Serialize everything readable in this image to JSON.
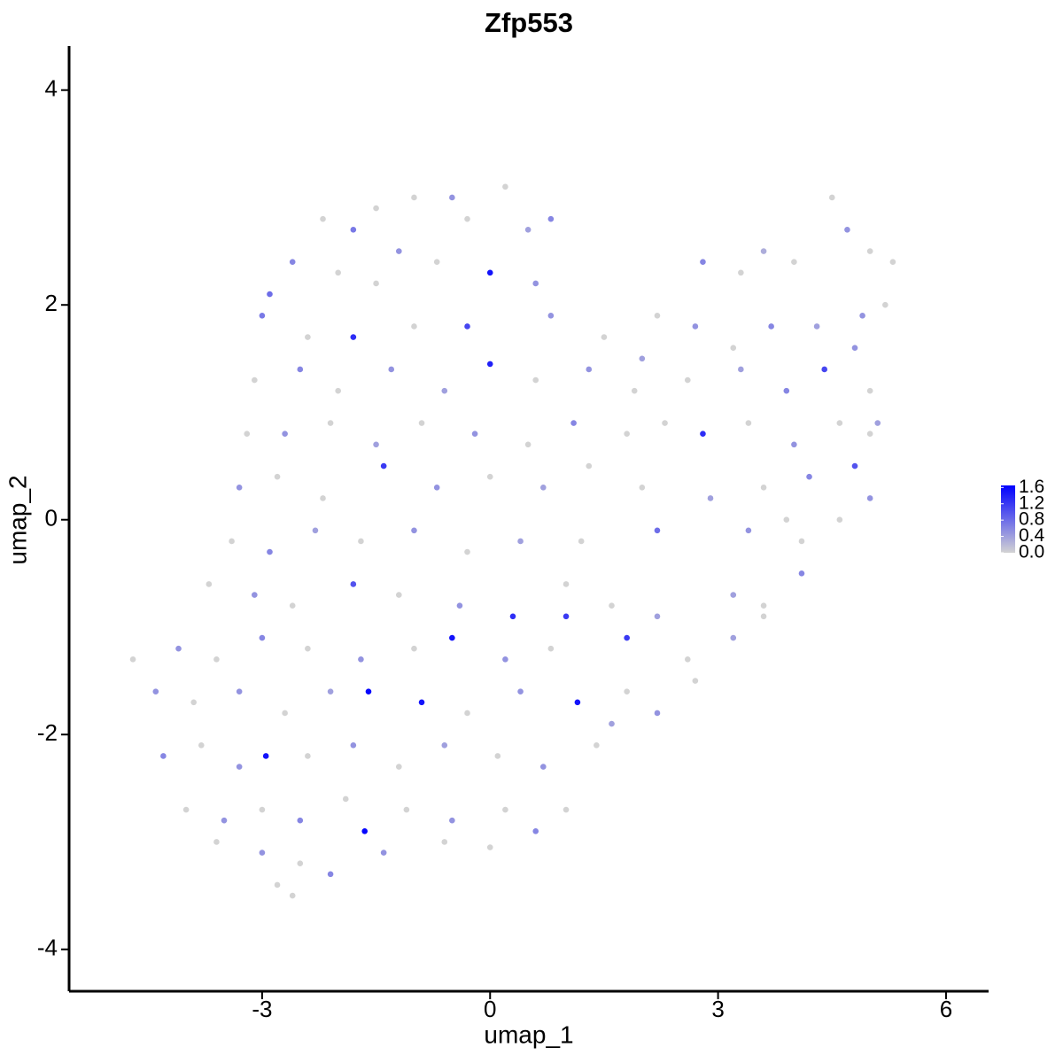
{
  "chart_data": {
    "type": "scatter",
    "title": "Zfp553",
    "xlabel": "umap_1",
    "ylabel": "umap_2",
    "xlim": [
      -5.54,
      6.56
    ],
    "ylim": [
      -4.39,
      4.41
    ],
    "xticks": [
      -3,
      0,
      3,
      6
    ],
    "yticks": [
      -4,
      -2,
      0,
      2,
      4
    ],
    "colors": [
      "#d3d3d3",
      "#0000ff"
    ],
    "clim": [
      0,
      1.65
    ],
    "cticks": [
      {
        "value": 0,
        "label": "0.0"
      },
      0.4,
      0.8,
      1.2,
      1.6
    ],
    "x": [
      -1.5,
      -1.0,
      -0.5,
      0.2,
      0.8,
      -2.2,
      -1.8,
      0.5,
      -0.3,
      -2.6,
      -2.0,
      -1.2,
      -0.7,
      0.0,
      0.6,
      -2.9,
      -1.5,
      4.5,
      4.7,
      5.0,
      5.3,
      3.6,
      4.0,
      3.3,
      2.8,
      -3.0,
      -2.4,
      -1.8,
      -1.0,
      -0.3,
      0.8,
      1.5,
      2.2,
      2.7,
      3.2,
      3.7,
      4.3,
      4.9,
      5.2,
      2.0,
      -3.1,
      -2.5,
      -2.0,
      -1.3,
      -0.6,
      0.0,
      0.6,
      1.3,
      1.9,
      2.6,
      3.3,
      3.9,
      4.4,
      5.0,
      4.8,
      -3.2,
      -2.7,
      -2.1,
      -1.5,
      -0.9,
      -0.2,
      0.5,
      1.1,
      1.8,
      2.3,
      2.8,
      3.4,
      4.0,
      4.6,
      5.1,
      -3.3,
      -2.8,
      -2.2,
      -1.4,
      -0.7,
      0.0,
      0.7,
      1.3,
      2.0,
      2.9,
      3.6,
      4.2,
      4.8,
      5.0,
      3.9,
      -3.4,
      -2.9,
      -2.3,
      -1.7,
      -1.0,
      -0.3,
      0.4,
      1.2,
      2.2,
      3.4,
      4.1,
      4.6,
      5.0,
      -3.7,
      -3.1,
      -2.6,
      -1.8,
      -1.2,
      -0.4,
      0.3,
      1.0,
      1.6,
      2.2,
      3.2,
      3.6,
      4.1,
      1.0,
      -4.7,
      -4.1,
      -3.6,
      -3.0,
      -2.4,
      -1.7,
      -1.0,
      -0.5,
      0.2,
      0.8,
      1.8,
      2.6,
      3.2,
      3.6,
      -4.4,
      -3.9,
      -3.3,
      -2.7,
      -2.1,
      -1.6,
      -0.9,
      -0.3,
      0.4,
      1.15,
      1.8,
      2.2,
      2.7,
      -4.3,
      -3.8,
      -3.3,
      -2.95,
      -2.4,
      -1.8,
      -1.2,
      -0.6,
      0.1,
      0.7,
      1.4,
      1.6,
      -4.0,
      -3.5,
      -3.0,
      -2.5,
      -1.9,
      -1.65,
      -1.1,
      -0.5,
      0.2,
      0.6,
      1.0,
      -3.6,
      -3.0,
      -2.5,
      -2.1,
      -1.4,
      -0.6,
      0.0,
      -2.6,
      -2.8
    ],
    "y": [
      2.9,
      3.0,
      3.0,
      3.1,
      2.8,
      2.8,
      2.7,
      2.7,
      2.8,
      2.4,
      2.3,
      2.5,
      2.4,
      2.3,
      2.2,
      2.1,
      2.2,
      3.0,
      2.7,
      2.5,
      2.4,
      2.5,
      2.4,
      2.3,
      2.4,
      1.9,
      1.7,
      1.7,
      1.8,
      1.8,
      1.9,
      1.7,
      1.9,
      1.8,
      1.6,
      1.8,
      1.8,
      1.9,
      2.0,
      1.5,
      1.3,
      1.4,
      1.2,
      1.4,
      1.2,
      1.45,
      1.3,
      1.4,
      1.2,
      1.3,
      1.4,
      1.2,
      1.4,
      1.2,
      1.6,
      0.8,
      0.8,
      0.9,
      0.7,
      0.9,
      0.8,
      0.7,
      0.9,
      0.8,
      0.9,
      0.8,
      0.9,
      0.7,
      0.9,
      0.9,
      0.3,
      0.4,
      0.2,
      0.5,
      0.3,
      0.4,
      0.3,
      0.5,
      0.3,
      0.2,
      0.3,
      0.4,
      0.5,
      0.8,
      0.0,
      -0.2,
      -0.3,
      -0.1,
      -0.2,
      -0.1,
      -0.3,
      -0.2,
      -0.2,
      -0.1,
      -0.1,
      -0.2,
      0.0,
      0.2,
      -0.6,
      -0.7,
      -0.8,
      -0.6,
      -0.7,
      -0.8,
      -0.9,
      -0.6,
      -0.8,
      -0.9,
      -0.7,
      -0.8,
      -0.5,
      -0.9,
      -1.3,
      -1.2,
      -1.3,
      -1.1,
      -1.2,
      -1.3,
      -1.2,
      -1.1,
      -1.3,
      -1.2,
      -1.1,
      -1.3,
      -1.1,
      -0.9,
      -1.6,
      -1.7,
      -1.6,
      -1.8,
      -1.6,
      -1.6,
      -1.7,
      -1.8,
      -1.6,
      -1.7,
      -1.6,
      -1.8,
      -1.5,
      -2.2,
      -2.1,
      -2.3,
      -2.2,
      -2.2,
      -2.1,
      -2.3,
      -2.1,
      -2.2,
      -2.3,
      -2.1,
      -1.9,
      -2.7,
      -2.8,
      -2.7,
      -2.8,
      -2.6,
      -2.9,
      -2.7,
      -2.8,
      -2.7,
      -2.9,
      -2.7,
      -3.0,
      -3.1,
      -3.2,
      -3.3,
      -3.1,
      -3.0,
      -3.05,
      -3.5,
      -3.4
    ],
    "values": [
      0,
      0,
      0.5,
      0,
      0.6,
      0,
      0.7,
      0.4,
      0,
      0.6,
      0,
      0.5,
      0,
      1.5,
      0.5,
      0.8,
      0,
      0,
      0.5,
      0,
      0,
      0.3,
      0,
      0,
      0.6,
      0.7,
      0,
      1.3,
      0,
      1.1,
      0.5,
      0,
      0,
      0.5,
      0,
      0.6,
      0.4,
      0.5,
      0,
      0.4,
      0,
      0.6,
      0,
      0.5,
      0.4,
      1.4,
      0,
      0.5,
      0,
      0,
      0.4,
      0.6,
      1.1,
      0,
      0.5,
      0,
      0.5,
      0,
      0.4,
      0,
      0.5,
      0,
      0.6,
      0,
      0,
      1.3,
      0,
      0.5,
      0,
      0.4,
      0.5,
      0,
      0,
      1.2,
      0.5,
      0,
      0.4,
      0,
      0,
      0.4,
      0,
      0.6,
      1.0,
      0,
      0,
      0,
      0.6,
      0.4,
      0,
      0.5,
      0,
      0.4,
      0,
      0.8,
      0.5,
      0,
      0,
      0.5,
      0,
      0.5,
      0,
      1.0,
      0,
      0.5,
      1.3,
      0,
      0,
      0.4,
      0.4,
      0,
      0.6,
      1.2,
      0,
      0.5,
      0,
      0.6,
      0,
      0.5,
      0,
      1.5,
      0.5,
      0,
      1.2,
      0,
      0.4,
      0,
      0.5,
      0,
      0.5,
      0,
      0.4,
      1.6,
      1.5,
      0,
      0.5,
      1.5,
      0,
      0.5,
      0,
      0.6,
      0,
      0.5,
      1.5,
      0,
      0.5,
      0,
      0.4,
      0,
      0.5,
      0,
      0.4,
      0,
      0.5,
      0,
      0.6,
      0,
      1.6,
      0,
      0.5,
      0,
      0.6,
      0,
      0,
      0.5,
      0,
      0.6,
      0.5,
      0,
      0,
      0,
      0
    ]
  }
}
